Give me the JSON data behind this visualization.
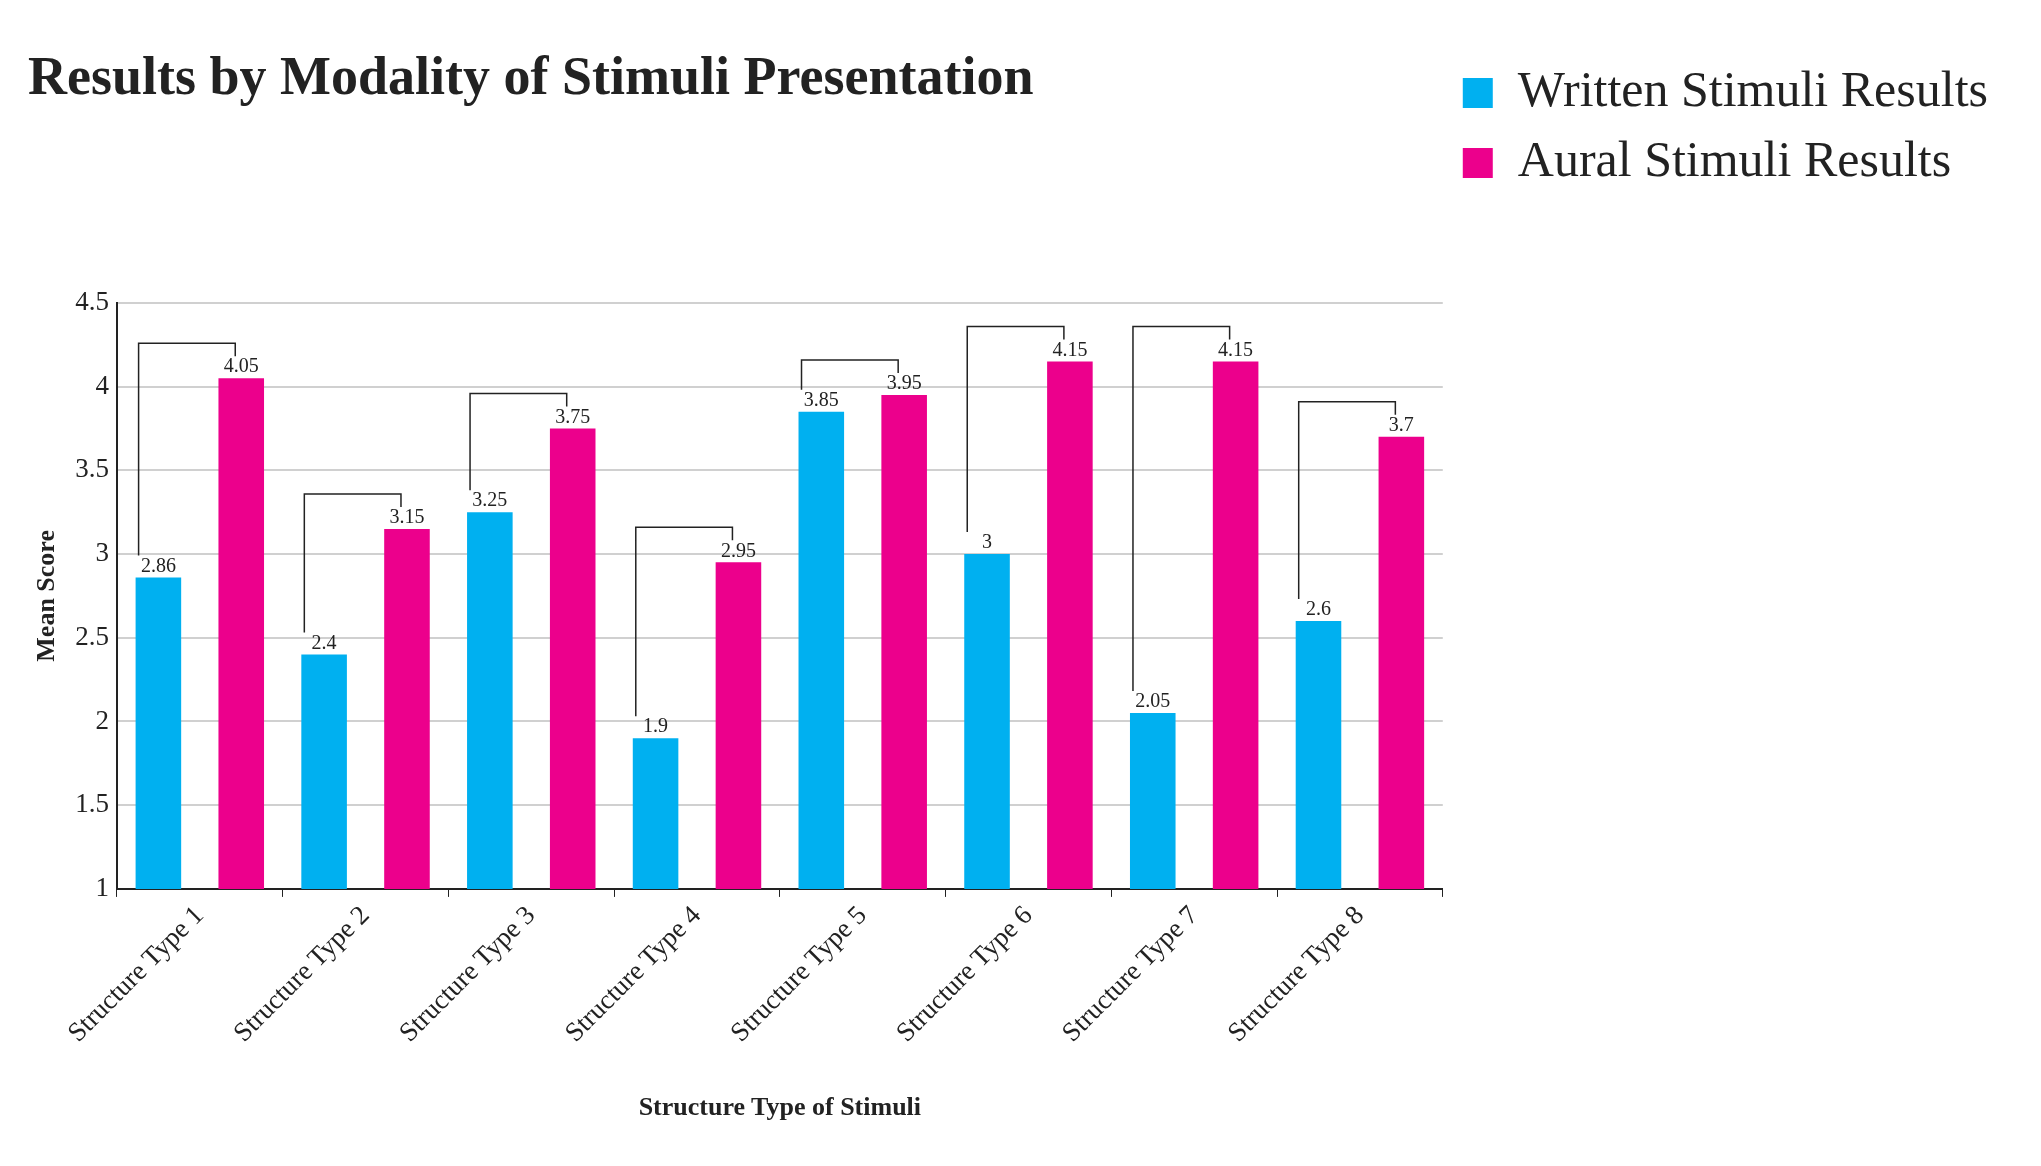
{
  "chart_data": {
    "type": "bar",
    "title": "Results by Modality of Stimuli Presentation",
    "xlabel": "Structure Type of Stimuli",
    "ylabel": "Mean Score",
    "categories": [
      "Structure Type 1",
      "Structure Type 2",
      "Structure Type 3",
      "Structure Type 4",
      "Structure Type 5",
      "Structure Type 6",
      "Structure Type 7",
      "Structure Type 8"
    ],
    "series": [
      {
        "name": "Written Stimuli Results",
        "color": "#00b0f0",
        "values": [
          2.86,
          2.4,
          3.25,
          1.9,
          3.85,
          3,
          2.05,
          2.6
        ]
      },
      {
        "name": "Aural Stimuli Results",
        "color": "#ec008c",
        "values": [
          4.05,
          3.15,
          3.75,
          2.95,
          3.95,
          4.15,
          4.15,
          3.7
        ]
      }
    ],
    "ylim": [
      1,
      4.5
    ],
    "yticks": [
      1,
      1.5,
      2,
      2.5,
      3,
      3.5,
      4,
      4.5
    ],
    "grid": "y",
    "legend": "right",
    "data_labels": true
  }
}
